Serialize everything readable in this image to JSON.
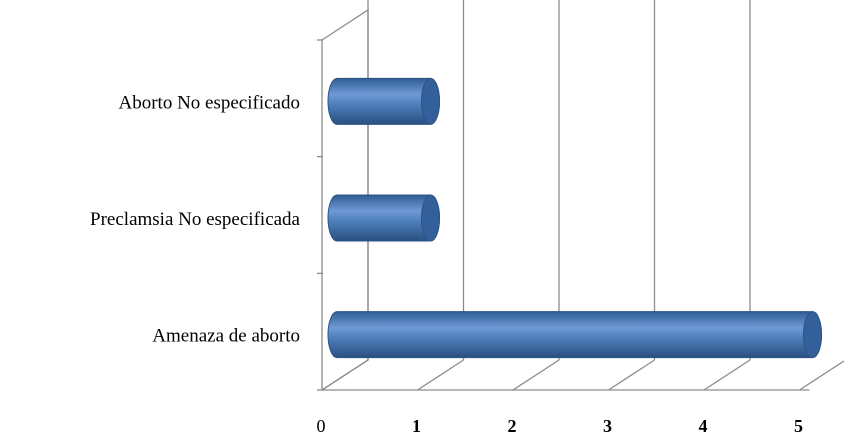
{
  "chart_data": {
    "type": "bar",
    "orientation": "horizontal",
    "three_d": true,
    "categories": [
      "Amenaza de aborto",
      "Preclamsia No especificada",
      "Aborto No especificado"
    ],
    "values": [
      5,
      1,
      1
    ],
    "xlim": [
      0,
      5
    ],
    "x_ticks": [
      "0",
      "1",
      "2",
      "3",
      "4",
      "5"
    ],
    "grid": true,
    "legend": "none",
    "bar_color": "#4f81bd",
    "bar_edge_color": "#2c5485"
  }
}
